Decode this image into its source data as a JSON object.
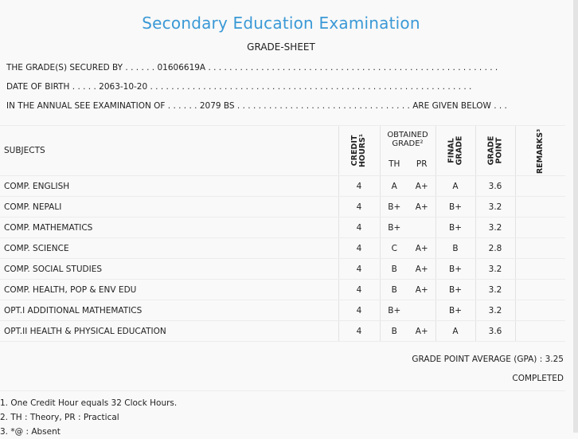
{
  "header": {
    "title": "Secondary Education Examination",
    "subtitle": "GRADE-SHEET"
  },
  "info": {
    "secured_by": "THE GRADE(S) SECURED BY . . . . . . 01606619A . . . . . . . . . . . . . . . . . . . . . . . . . . . . . . . . . . . . . . . . . . . . . . . . . . . . . . .",
    "dob": "DATE OF BIRTH . . . . . 2063-10-20 . . . . . . . . . . . . . . . . . . . . . . . . . . . . . . . . . . . . . . . . . . . . . . . . . . . . . . . . . . . . .",
    "exam": "IN THE ANNUAL SEE EXAMINATION OF . . . . . . 2079 BS . . . . . . . . . . . . . . . . . . . . . . . . . . . . . . . . . ARE GIVEN BELOW . . ."
  },
  "table": {
    "headers": {
      "subjects": "SUBJECTS",
      "credit_hours": "CREDIT\nHOURS¹",
      "obtained_grade": "OBTAINED GRADE²",
      "th": "TH",
      "pr": "PR",
      "final_grade": "FINAL\nGRADE",
      "grade_point": "GRADE\nPOINT",
      "remarks": "REMARKS³"
    },
    "rows": [
      {
        "subject": "COMP. ENGLISH",
        "credit": "4",
        "th": "A",
        "pr": "A+",
        "final": "A",
        "gp": "3.6"
      },
      {
        "subject": "COMP. NEPALI",
        "credit": "4",
        "th": "B+",
        "pr": "A+",
        "final": "B+",
        "gp": "3.2"
      },
      {
        "subject": "COMP. MATHEMATICS",
        "credit": "4",
        "th": "B+",
        "pr": "",
        "final": "B+",
        "gp": "3.2"
      },
      {
        "subject": "COMP. SCIENCE",
        "credit": "4",
        "th": "C",
        "pr": "A+",
        "final": "B",
        "gp": "2.8"
      },
      {
        "subject": "COMP. SOCIAL STUDIES",
        "credit": "4",
        "th": "B",
        "pr": "A+",
        "final": "B+",
        "gp": "3.2"
      },
      {
        "subject": "COMP. HEALTH, POP & ENV EDU",
        "credit": "4",
        "th": "B",
        "pr": "A+",
        "final": "B+",
        "gp": "3.2"
      },
      {
        "subject": "OPT.I ADDITIONAL MATHEMATICS",
        "credit": "4",
        "th": "B+",
        "pr": "",
        "final": "B+",
        "gp": "3.2"
      },
      {
        "subject": "OPT.II HEALTH & PHYSICAL EDUCATION",
        "credit": "4",
        "th": "B",
        "pr": "A+",
        "final": "A",
        "gp": "3.6"
      }
    ]
  },
  "summary": {
    "gpa": "GRADE POINT AVERAGE (GPA) : 3.25",
    "status": "COMPLETED"
  },
  "footnotes": [
    "1. One Credit Hour equals 32 Clock Hours.",
    "2. TH : Theory, PR : Practical",
    "3. *@ : Absent"
  ]
}
